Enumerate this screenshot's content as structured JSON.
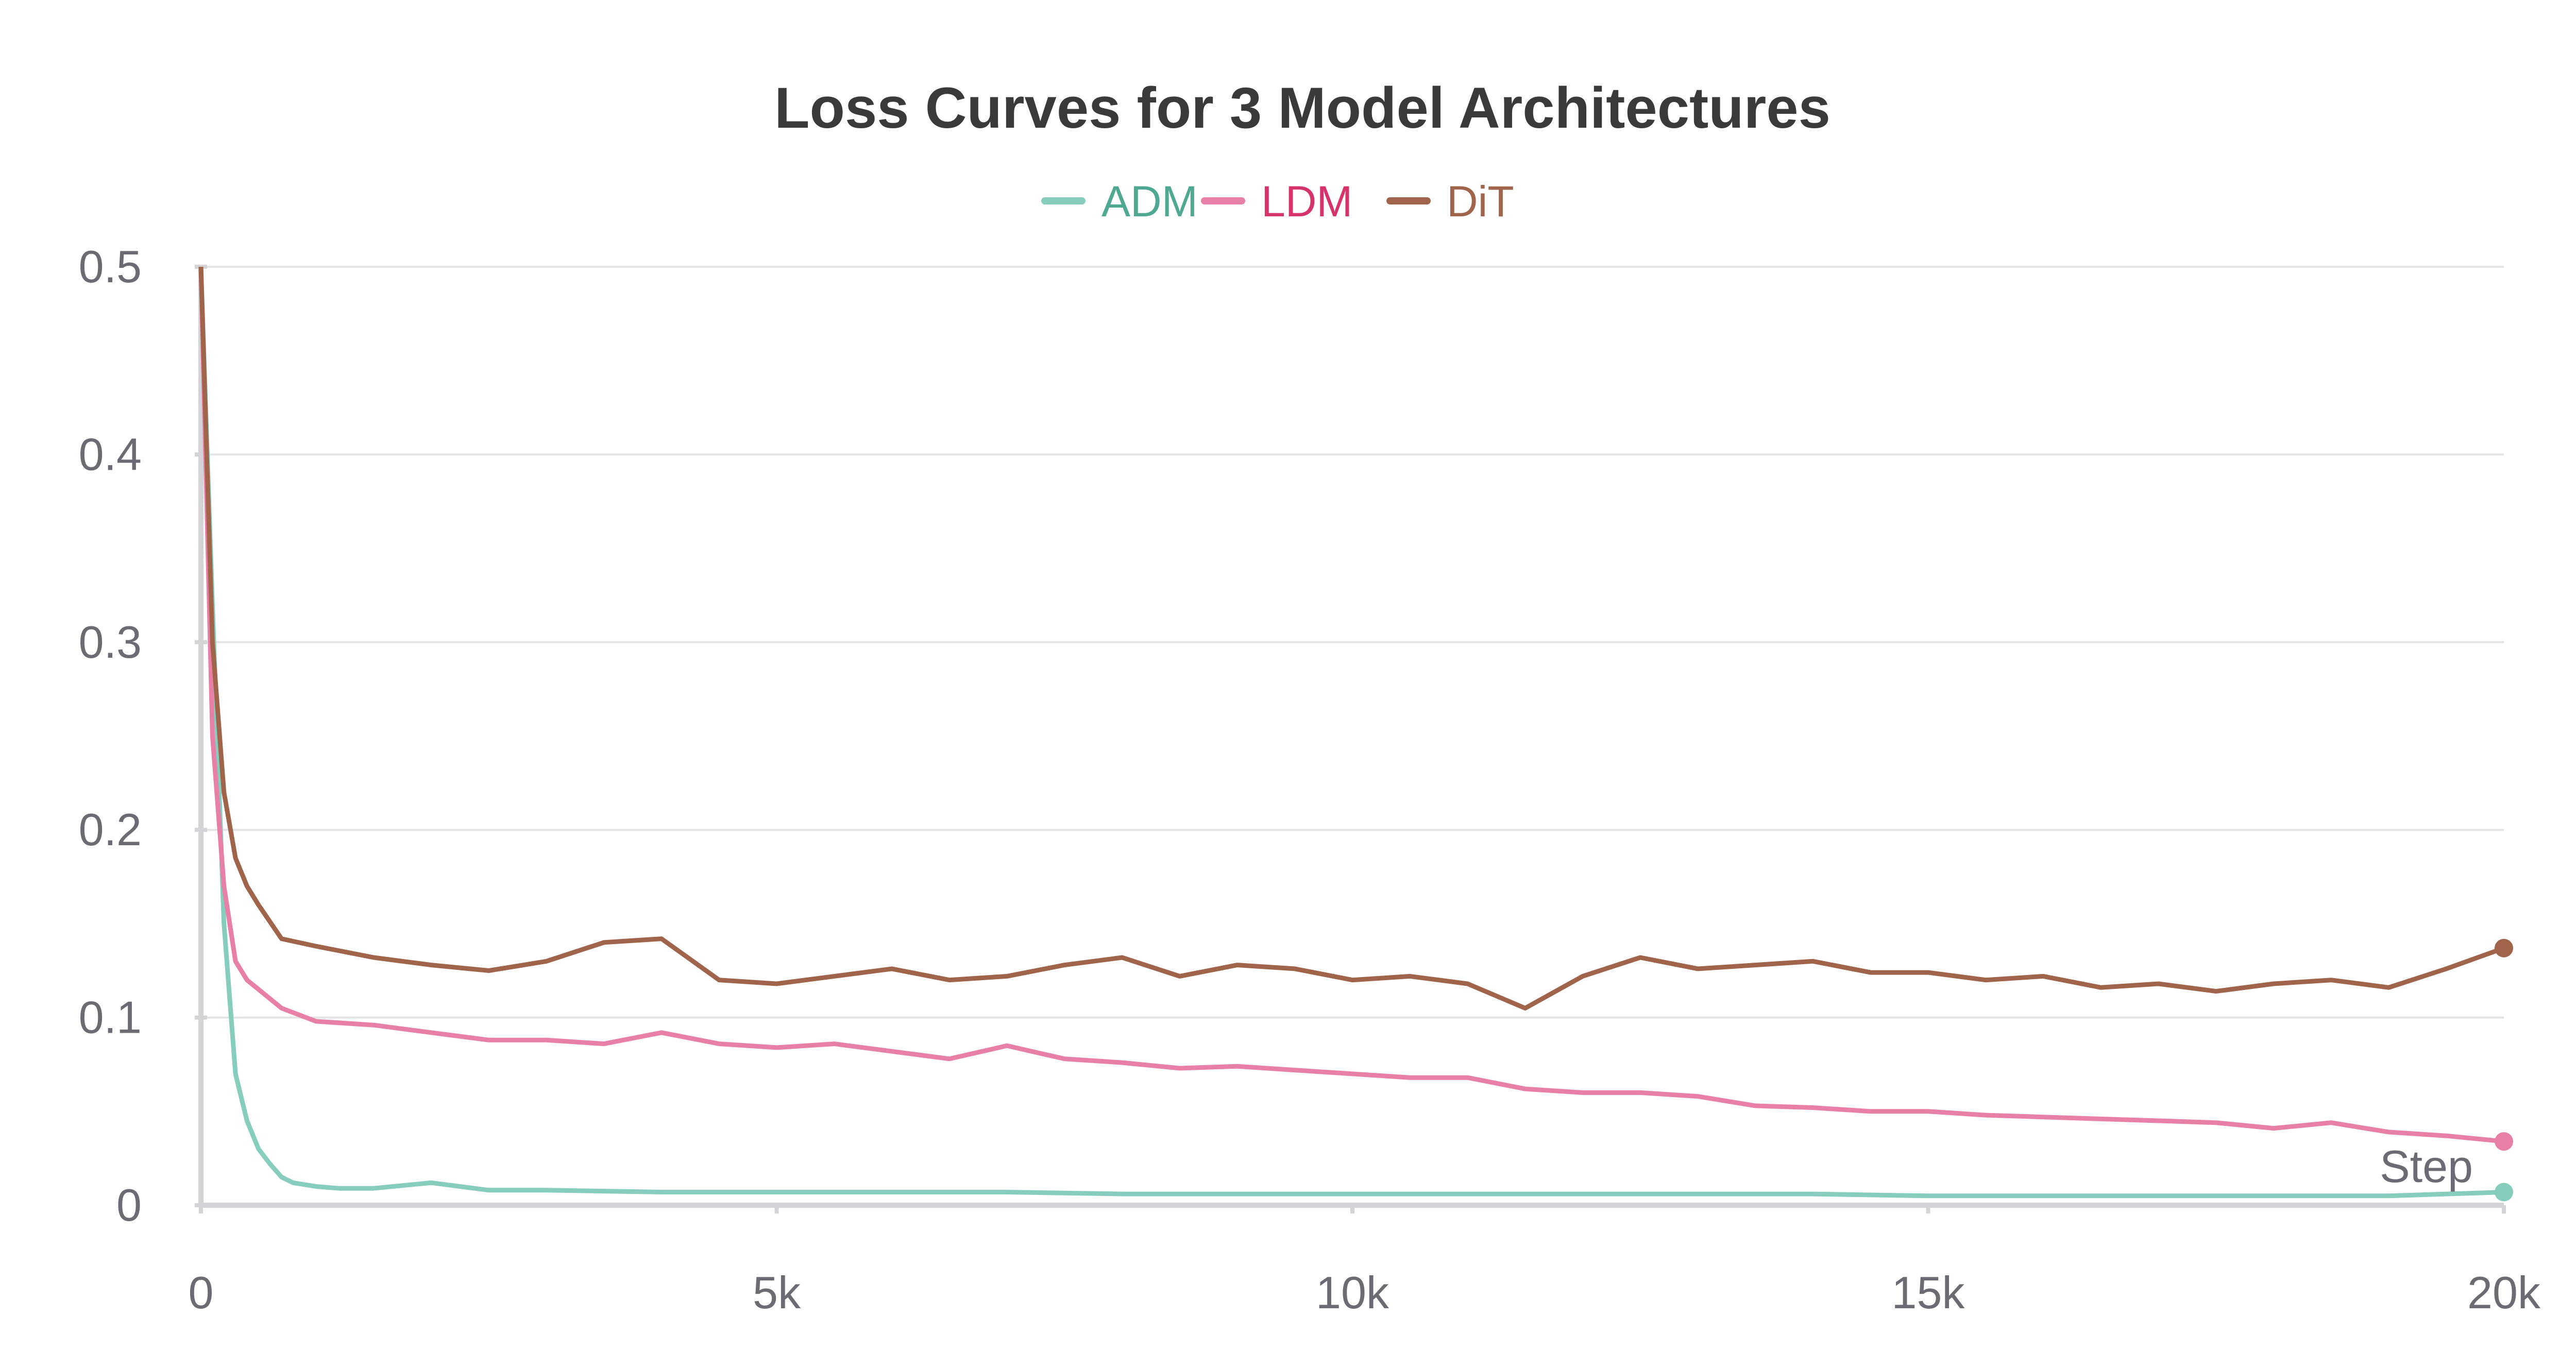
{
  "chart_data": {
    "type": "line",
    "title": "Loss Curves for 3 Model Architectures",
    "xlabel": "Step",
    "ylabel": "",
    "xlim": [
      0,
      20000
    ],
    "ylim": [
      0,
      0.5
    ],
    "x_ticks": [
      0,
      5000,
      10000,
      15000,
      20000
    ],
    "x_tick_labels": [
      "0",
      "5k",
      "10k",
      "15k",
      "20k"
    ],
    "y_ticks": [
      0,
      0.1,
      0.2,
      0.3,
      0.4,
      0.5
    ],
    "y_tick_labels": [
      "0",
      "0.1",
      "0.2",
      "0.3",
      "0.4",
      "0.5"
    ],
    "grid": true,
    "legend_position": "top-center",
    "series": [
      {
        "name": "ADM",
        "color": "#86cdbd",
        "label_color": "#4fa892",
        "x": [
          0,
          100,
          200,
          300,
          400,
          500,
          600,
          700,
          800,
          1000,
          1200,
          1500,
          2000,
          2500,
          3000,
          4000,
          5000,
          6000,
          7000,
          8000,
          9000,
          10000,
          11000,
          12000,
          13000,
          14000,
          15000,
          16000,
          17000,
          18000,
          19000,
          20000
        ],
        "y": [
          0.5,
          0.32,
          0.15,
          0.07,
          0.045,
          0.03,
          0.022,
          0.015,
          0.012,
          0.01,
          0.009,
          0.009,
          0.012,
          0.008,
          0.008,
          0.007,
          0.007,
          0.007,
          0.007,
          0.006,
          0.006,
          0.006,
          0.006,
          0.006,
          0.006,
          0.006,
          0.005,
          0.005,
          0.005,
          0.005,
          0.005,
          0.007
        ]
      },
      {
        "name": "LDM",
        "color": "#e87fa6",
        "label_color": "#d6336c",
        "x": [
          0,
          100,
          200,
          300,
          400,
          500,
          700,
          1000,
          1500,
          2000,
          2500,
          3000,
          3500,
          4000,
          4500,
          5000,
          5500,
          6000,
          6500,
          7000,
          7500,
          8000,
          8500,
          9000,
          9500,
          10000,
          10500,
          11000,
          11500,
          12000,
          12500,
          13000,
          13500,
          14000,
          14500,
          15000,
          15500,
          16000,
          16500,
          17000,
          17500,
          18000,
          18500,
          19000,
          19500,
          20000
        ],
        "y": [
          0.5,
          0.25,
          0.17,
          0.13,
          0.12,
          0.115,
          0.105,
          0.098,
          0.096,
          0.092,
          0.088,
          0.088,
          0.086,
          0.092,
          0.086,
          0.084,
          0.086,
          0.082,
          0.078,
          0.085,
          0.078,
          0.076,
          0.073,
          0.074,
          0.072,
          0.07,
          0.068,
          0.068,
          0.062,
          0.06,
          0.06,
          0.058,
          0.053,
          0.052,
          0.05,
          0.05,
          0.048,
          0.047,
          0.046,
          0.045,
          0.044,
          0.041,
          0.044,
          0.039,
          0.037,
          0.034
        ]
      },
      {
        "name": "DiT",
        "color": "#a0644a",
        "label_color": "#a0644a",
        "x": [
          0,
          100,
          200,
          300,
          400,
          500,
          700,
          1000,
          1500,
          2000,
          2500,
          3000,
          3500,
          4000,
          4500,
          5000,
          5500,
          6000,
          6500,
          7000,
          7500,
          8000,
          8500,
          9000,
          9500,
          10000,
          10500,
          11000,
          11500,
          12000,
          12500,
          13000,
          13500,
          14000,
          14500,
          15000,
          15500,
          16000,
          16500,
          17000,
          17500,
          18000,
          18500,
          19000,
          19500,
          20000
        ],
        "y": [
          0.5,
          0.3,
          0.22,
          0.185,
          0.17,
          0.16,
          0.142,
          0.138,
          0.132,
          0.128,
          0.125,
          0.13,
          0.14,
          0.142,
          0.12,
          0.118,
          0.122,
          0.126,
          0.12,
          0.122,
          0.128,
          0.132,
          0.122,
          0.128,
          0.126,
          0.12,
          0.122,
          0.118,
          0.105,
          0.122,
          0.132,
          0.126,
          0.128,
          0.13,
          0.124,
          0.124,
          0.12,
          0.122,
          0.116,
          0.118,
          0.114,
          0.118,
          0.12,
          0.116,
          0.126,
          0.137
        ]
      }
    ]
  }
}
